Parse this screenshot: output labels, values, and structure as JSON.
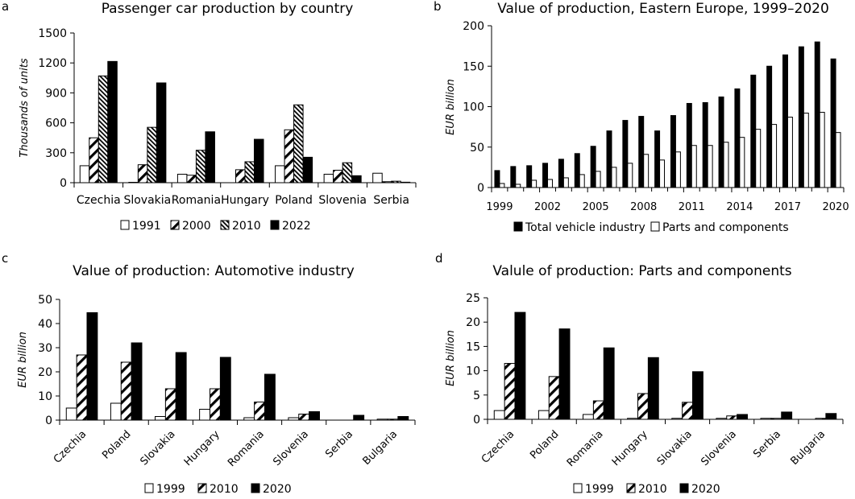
{
  "chart_data": [
    {
      "panel_label": "a",
      "type": "bar",
      "title": "Passenger car production by country",
      "xlabel": "",
      "ylabel": "Thousands of units",
      "ylim": [
        0,
        1500
      ],
      "yticks": [
        0,
        300,
        600,
        900,
        1200,
        1500
      ],
      "grid": false,
      "legend_position": "bottom",
      "categories": [
        "Czechia",
        "Slovakia",
        "Romania",
        "Hungary",
        "Poland",
        "Slovenia",
        "Serbia"
      ],
      "series": [
        {
          "name": "1991",
          "pattern": "white",
          "values": [
            170,
            4,
            85,
            0,
            170,
            85,
            95
          ]
        },
        {
          "name": "2000",
          "pattern": "wide-diagonal",
          "values": [
            450,
            180,
            75,
            130,
            530,
            125,
            10
          ]
        },
        {
          "name": "2010",
          "pattern": "dense-diagonal",
          "values": [
            1070,
            555,
            325,
            210,
            780,
            200,
            15
          ]
        },
        {
          "name": "2022",
          "pattern": "black",
          "values": [
            1215,
            1000,
            510,
            435,
            255,
            70,
            5
          ]
        }
      ]
    },
    {
      "panel_label": "b",
      "type": "bar",
      "title": "Value of production, Eastern Europe, 1999–2020",
      "xlabel": "",
      "ylabel": "EUR billion",
      "ylim": [
        0,
        200
      ],
      "yticks": [
        0,
        50,
        100,
        150,
        200
      ],
      "grid": false,
      "legend_position": "bottom",
      "categories": [
        "1999",
        "2000",
        "2001",
        "2002",
        "2003",
        "2004",
        "2005",
        "2006",
        "2007",
        "2008",
        "2009",
        "2010",
        "2011",
        "2012",
        "2013",
        "2014",
        "2015",
        "2016",
        "2017",
        "2018",
        "2019",
        "2020"
      ],
      "xtick_labels": [
        "1999",
        "2002",
        "2005",
        "2008",
        "2011",
        "2014",
        "2017",
        "2020"
      ],
      "series": [
        {
          "name": "Total vehicle industry",
          "pattern": "black",
          "values": [
            21,
            26,
            27,
            30,
            35,
            42,
            51,
            70,
            83,
            88,
            70,
            89,
            104,
            105,
            112,
            122,
            139,
            150,
            164,
            174,
            180,
            159
          ]
        },
        {
          "name": "Parts and components",
          "pattern": "white",
          "values": [
            5,
            4,
            9,
            10,
            12,
            16,
            20,
            25,
            30,
            41,
            34,
            44,
            52,
            52,
            56,
            62,
            72,
            78,
            87,
            92,
            93,
            68
          ]
        }
      ]
    },
    {
      "panel_label": "c",
      "type": "bar",
      "title": "Value of production: Automotive industry",
      "xlabel": "",
      "ylabel": "EUR billion",
      "ylim": [
        0,
        50
      ],
      "yticks": [
        0,
        10,
        20,
        30,
        40,
        50
      ],
      "grid": false,
      "legend_position": "bottom",
      "categories": [
        "Czechia",
        "Poland",
        "Slovakia",
        "Hungary",
        "Romania",
        "Slovenia",
        "Serbia",
        "Bulgaria"
      ],
      "series": [
        {
          "name": "1999",
          "pattern": "white",
          "values": [
            5,
            7,
            1.5,
            4.5,
            1,
            1,
            0,
            0.4
          ]
        },
        {
          "name": "2010",
          "pattern": "wide-diagonal",
          "values": [
            27,
            24,
            13,
            13,
            7.5,
            2.5,
            0,
            0.4
          ]
        },
        {
          "name": "2020",
          "pattern": "black",
          "values": [
            44.5,
            32,
            28,
            26,
            19,
            3.5,
            2,
            1.5
          ]
        }
      ]
    },
    {
      "panel_label": "d",
      "type": "bar",
      "title": "Valule of production: Parts and components",
      "xlabel": "",
      "ylabel": "EUR billion",
      "ylim": [
        0,
        25
      ],
      "yticks": [
        0,
        5,
        10,
        15,
        20,
        25
      ],
      "grid": false,
      "legend_position": "bottom",
      "categories": [
        "Czechia",
        "Poland",
        "Romania",
        "Hungary",
        "Slovakia",
        "Slovenia",
        "Serbia",
        "Bulgaria"
      ],
      "series": [
        {
          "name": "1999",
          "pattern": "white",
          "values": [
            1.8,
            1.8,
            1,
            0.2,
            0.2,
            0.2,
            0.2,
            0
          ]
        },
        {
          "name": "2010",
          "pattern": "wide-diagonal",
          "values": [
            11.5,
            8.8,
            3.8,
            5.3,
            3.5,
            0.7,
            0.2,
            0.2
          ]
        },
        {
          "name": "2020",
          "pattern": "black",
          "values": [
            22,
            18.6,
            14.7,
            12.7,
            9.8,
            1,
            1.5,
            1.2
          ]
        }
      ]
    }
  ]
}
